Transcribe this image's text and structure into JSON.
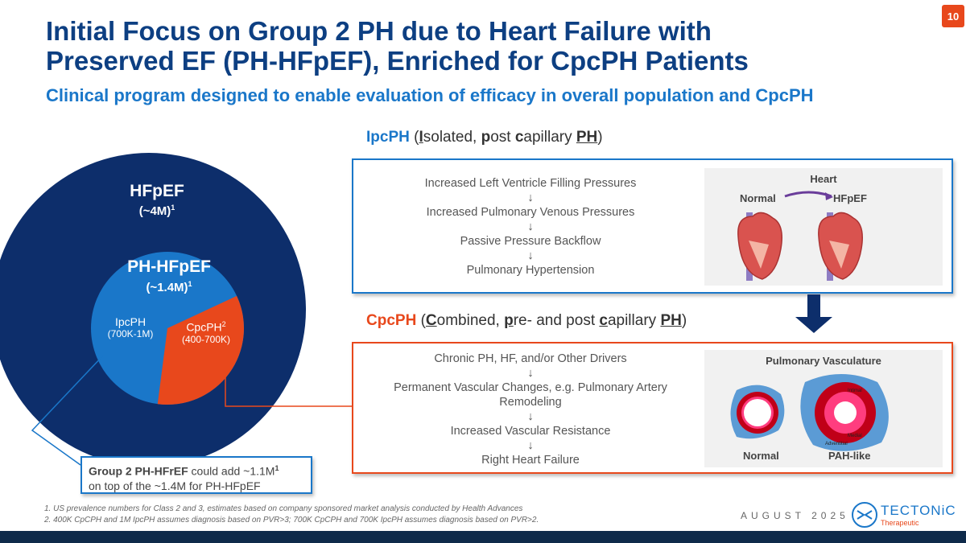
{
  "page_number": "10",
  "title_line1": "Initial Focus on Group 2 PH due to Heart Failure with",
  "title_line2": "Preserved EF (PH-HFpEF), Enriched for CpcPH Patients",
  "subtitle": "Clinical program designed to enable evaluation of efficacy in overall population and CpcPH",
  "diagram": {
    "outer_label": "HFpEF",
    "outer_value": "(~4M)",
    "outer_sup": "1",
    "inner_label": "PH-HFpEF",
    "inner_value": "(~1.4M)",
    "inner_sup": "1",
    "ipcph_label": "IpcPH",
    "ipcph_value": "(700K-1M)",
    "cpcph_label": "CpcPH",
    "cpcph_sup": "2",
    "cpcph_value": "(400-700K)",
    "share_cpcph_percent": 34
  },
  "callout": {
    "bold": "Group 2 PH-HFrEF",
    "text1": " could add ~1.1M",
    "sup": "1",
    "text2": "on top of the ~1.4M for PH-HFpEF"
  },
  "ipcph": {
    "heading_abbr": "IpcPH",
    "heading_p1": " (",
    "heading_I": "I",
    "heading_p2": "solated, ",
    "heading_p": "p",
    "heading_p3": "ost ",
    "heading_c": "c",
    "heading_p4": "apillary ",
    "heading_PH": "PH",
    "heading_p5": ")",
    "steps": [
      "Increased Left Ventricle Filling Pressures",
      "Increased Pulmonary Venous Pressures",
      "Passive Pressure Backflow",
      "Pulmonary Hypertension"
    ],
    "image": {
      "title": "Heart",
      "left": "Normal",
      "right": "HFpEF"
    }
  },
  "cpcph": {
    "heading_abbr": "CpcPH",
    "heading_p1": " (",
    "heading_C": "C",
    "heading_p2": "ombined, ",
    "heading_p": "p",
    "heading_p3": "re- and post ",
    "heading_c": "c",
    "heading_p4": "apillary ",
    "heading_PH": "PH",
    "heading_p5": ")",
    "steps": [
      "Chronic PH, HF, and/or Other Drivers",
      "Permanent Vascular Changes, e.g. Pulmonary Artery Remodeling",
      "Increased Vascular Resistance",
      "Right Heart Failure"
    ],
    "image": {
      "title": "Pulmonary Vasculature",
      "left": "Normal",
      "right": "PAH-like",
      "layer1": "Intimal",
      "layer2": "Medial",
      "layer3": "Adventitial"
    }
  },
  "arrow_glyph": "↓",
  "footnotes": [
    "1. US prevalence numbers for Class 2 and 3, estimates based on company sponsored market analysis conducted by Health Advances",
    "2. 400K CpCPH and 1M IpcPH  assumes diagnosis based on PVR>3; 700K CpCPH and 700K IpcPH assumes diagnosis based on PVR>2."
  ],
  "date": "AUGUST 2025",
  "logo": {
    "name": "TECTONiC",
    "sub": "Therapeutic"
  },
  "colors": {
    "navy": "#0d3f82",
    "blue": "#1a77c9",
    "orange": "#e8481c",
    "dark": "#0e2a4a"
  }
}
